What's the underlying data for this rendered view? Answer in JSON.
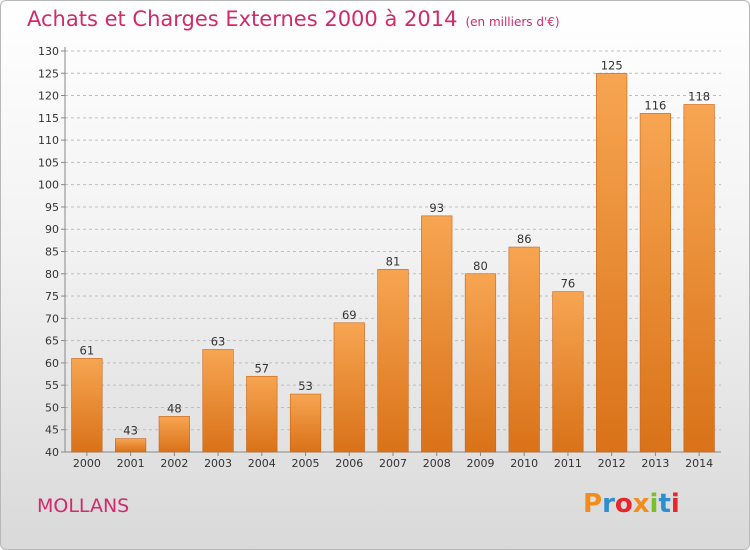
{
  "header": {
    "title": "Achats et Charges Externes 2000 à 2014",
    "unit": "(en milliers d'€)"
  },
  "footer": {
    "city": "MOLLANS",
    "logo_text": "Proxiti",
    "logo_colors": [
      "#f28c1c",
      "#2e8fd0",
      "#e8262c",
      "#f28c1c",
      "#7bbf2a",
      "#2e8fd0",
      "#e8262c"
    ]
  },
  "colors": {
    "bar_top": "#f7a552",
    "bar_bottom": "#d97218",
    "grid": "#bdbdbd",
    "axis_text": "#333333"
  },
  "chart_data": {
    "type": "bar",
    "title": "Achats et Charges Externes 2000 à 2014",
    "subtitle": "(en milliers d'€)",
    "xlabel": "",
    "ylabel": "",
    "categories": [
      "2000",
      "2001",
      "2002",
      "2003",
      "2004",
      "2005",
      "2006",
      "2007",
      "2008",
      "2009",
      "2010",
      "2011",
      "2012",
      "2013",
      "2014"
    ],
    "values": [
      61,
      43,
      48,
      63,
      57,
      53,
      69,
      81,
      93,
      80,
      86,
      76,
      125,
      116,
      118
    ],
    "ylim": [
      40,
      130
    ],
    "yticks": [
      40,
      45,
      50,
      55,
      60,
      65,
      70,
      75,
      80,
      85,
      90,
      95,
      100,
      105,
      110,
      115,
      120,
      125,
      130
    ],
    "grid": true,
    "data_labels": true
  }
}
